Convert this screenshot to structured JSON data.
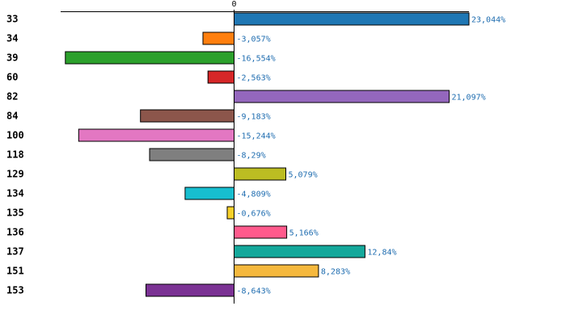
{
  "chart_data": {
    "type": "bar",
    "orientation": "horizontal",
    "title": "",
    "xlabel": "",
    "ylabel": "",
    "zero_tick_label": "0",
    "value_suffix": "%",
    "decimal_separator": ",",
    "grid": false,
    "legend": "none",
    "highlighted_category": "100",
    "highlight_color": "#e8000b",
    "categories": [
      "33",
      "34",
      "39",
      "60",
      "82",
      "84",
      "100",
      "118",
      "129",
      "134",
      "135",
      "136",
      "137",
      "151",
      "153"
    ],
    "values": [
      23.044,
      -3.057,
      -16.554,
      -2.563,
      21.097,
      -9.183,
      -15.244,
      -8.29,
      5.079,
      -4.809,
      -0.676,
      5.166,
      12.84,
      8.283,
      -8.643
    ],
    "value_labels": [
      "23,044%",
      "-3,057%",
      "-16,554%",
      "-2,563%",
      "21,097%",
      "-9,183%",
      "-15,244%",
      "-8,29%",
      "5,079%",
      "-4,809%",
      "-0,676%",
      "5,166%",
      "12,84%",
      "8,283%",
      "-8,643%"
    ],
    "colors": [
      "#1f77b4",
      "#ff7f0e",
      "#2ca02c",
      "#d62728",
      "#9467bd",
      "#8c564b",
      "#e377c2",
      "#7f7f7f",
      "#bcbd22",
      "#17becf",
      "#f7d02a",
      "#ff5a8c",
      "#14a89b",
      "#f5b83d",
      "#7b3294"
    ]
  }
}
